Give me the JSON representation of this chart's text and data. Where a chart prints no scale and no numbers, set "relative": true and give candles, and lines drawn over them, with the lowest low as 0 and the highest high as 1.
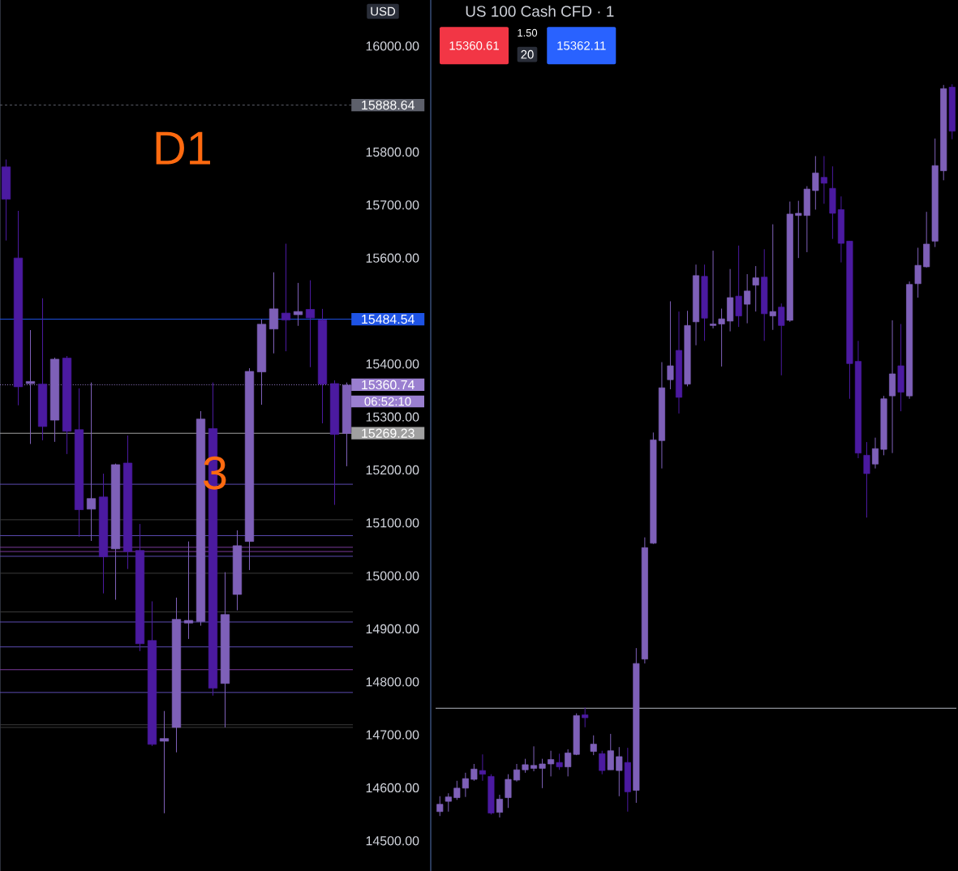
{
  "chart_data": [
    {
      "type": "candlestick",
      "categories": [
        null,
        null,
        null,
        null,
        null,
        null,
        null,
        null,
        null,
        null,
        null,
        null,
        null,
        null,
        null,
        null,
        null,
        null,
        null,
        null,
        null,
        null,
        null,
        null,
        null,
        null,
        null,
        null,
        null
      ],
      "ohlc": [
        [
          15772,
          15786,
          15633,
          15711
        ],
        [
          15600,
          15689,
          15322,
          15357
        ],
        [
          15363,
          15464,
          15249,
          15367
        ],
        [
          15362,
          15524,
          15256,
          15282
        ],
        [
          15294,
          15412,
          15253,
          15409
        ],
        [
          15411,
          15415,
          15230,
          15273
        ],
        [
          15276,
          15354,
          15074,
          15125
        ],
        [
          15126,
          15365,
          15066,
          15146
        ],
        [
          15149,
          15193,
          14967,
          15036
        ],
        [
          15051,
          15212,
          14955,
          15210
        ],
        [
          15213,
          15265,
          15013,
          15046
        ],
        [
          15048,
          15098,
          14858,
          14872
        ],
        [
          14878,
          14952,
          14679,
          14682
        ],
        [
          14688,
          14745,
          14552,
          14693
        ],
        [
          14714,
          14959,
          14667,
          14918
        ],
        [
          14911,
          15065,
          14881,
          14916
        ],
        [
          14914,
          15311,
          14906,
          15296
        ],
        [
          15278,
          15365,
          14774,
          14788
        ],
        [
          14797,
          15007,
          14714,
          14927
        ],
        [
          14965,
          15086,
          14935,
          15057
        ],
        [
          15065,
          15392,
          15011,
          15386
        ],
        [
          15385,
          15484,
          15323,
          15475
        ],
        [
          15466,
          15573,
          15420,
          15504
        ],
        [
          15496,
          15627,
          15424,
          15483
        ],
        [
          15493,
          15553,
          15472,
          15499
        ],
        [
          15503,
          15558,
          15394,
          15487
        ],
        [
          15483,
          15504,
          15288,
          15362
        ],
        [
          15363,
          15369,
          15134,
          15267
        ],
        [
          15269,
          15365,
          15207,
          15360
        ]
      ],
      "colors": [
        "#4b1aa0",
        "#4b1aa0",
        "#7e60b8",
        "#4b1aa0",
        "#7e60b8",
        "#4b1aa0",
        "#4b1aa0",
        "#7e60b8",
        "#4b1aa0",
        "#7e60b8",
        "#4b1aa0",
        "#4b1aa0",
        "#4b1aa0",
        "#7e60b8",
        "#7e60b8",
        "#7e60b8",
        "#7e60b8",
        "#4b1aa0",
        "#7e60b8",
        "#7e60b8",
        "#7e60b8",
        "#7e60b8",
        "#7e60b8",
        "#4b1aa0",
        "#7e60b8",
        "#4b1aa0",
        "#4b1aa0",
        "#4b1aa0",
        "#7e60b8"
      ],
      "ylim": [
        14443,
        16087
      ],
      "yticks": [
        {
          "value": 14500,
          "label": "14500.00"
        },
        {
          "value": 14600,
          "label": "14600.00"
        },
        {
          "value": 14700,
          "label": "14700.00"
        },
        {
          "value": 14800,
          "label": "14800.00"
        },
        {
          "value": 14900,
          "label": "14900.00"
        },
        {
          "value": 15000,
          "label": "15000.00"
        },
        {
          "value": 15100,
          "label": "15100.00"
        },
        {
          "value": 15200,
          "label": "15200.00"
        },
        {
          "value": 15300,
          "label": "15300.00"
        },
        {
          "value": 15400,
          "label": "15400.00"
        },
        {
          "value": 15600,
          "label": "15600.00"
        },
        {
          "value": 15700,
          "label": "15700.00"
        },
        {
          "value": 15800,
          "label": "15800.00"
        },
        {
          "value": 16000,
          "label": "16000.00"
        }
      ],
      "tick_labels": "y",
      "ref_lines": [
        {
          "axis": "y",
          "value": 15173,
          "color": "#5b4bb0"
        },
        {
          "axis": "y",
          "value": 15106,
          "color": "#3a3a3a"
        },
        {
          "axis": "y",
          "value": 15076,
          "color": "#5b4bb0"
        },
        {
          "axis": "y",
          "value": 15054,
          "color": "#7a3a9a"
        },
        {
          "axis": "y",
          "value": 15046,
          "color": "#7a3a9a"
        },
        {
          "axis": "y",
          "value": 15037,
          "color": "#5b4bb0"
        },
        {
          "axis": "y",
          "value": 15005,
          "color": "#3a3a3a"
        },
        {
          "axis": "y",
          "value": 14932,
          "color": "#3a3a3a"
        },
        {
          "axis": "y",
          "value": 14913,
          "color": "#5b4bb0"
        },
        {
          "axis": "y",
          "value": 14866,
          "color": "#5b4bb0"
        },
        {
          "axis": "y",
          "value": 14823,
          "color": "#7a3a9a"
        },
        {
          "axis": "y",
          "value": 14780,
          "color": "#5b4bb0"
        },
        {
          "axis": "y",
          "value": 14719,
          "color": "#3a3a3a"
        },
        {
          "axis": "y",
          "value": 14714,
          "color": "#3a3a3a"
        },
        {
          "axis": "y",
          "value": 15888.64,
          "label": "15888.64",
          "color": "#5d606b",
          "line_style": "dashed"
        },
        {
          "axis": "y",
          "value": 15484.54,
          "label": "15484.54",
          "color": "#1e53e5"
        },
        {
          "axis": "y",
          "value": 15360.74,
          "label": "15360.74",
          "color": "#9a7fd0",
          "line_style": "dotted"
        },
        {
          "axis": "y",
          "value": 15269.23,
          "label": "15269.23",
          "color": "#a0a0a0"
        }
      ],
      "annotations": [
        "D1",
        "3",
        "06:52:10",
        "USD"
      ]
    },
    {
      "type": "candlestick",
      "title": "US 100 Cash CFD · 1",
      "relative": true,
      "categories": [
        null,
        null,
        null,
        null,
        null,
        null,
        null,
        null,
        null,
        null,
        null,
        null,
        null,
        null,
        null,
        null,
        null,
        null,
        null,
        null,
        null,
        null,
        null,
        null,
        null,
        null,
        null,
        null,
        null,
        null,
        null,
        null,
        null,
        null,
        null,
        null,
        null,
        null,
        null,
        null,
        null,
        null,
        null,
        null,
        null,
        null,
        null,
        null,
        null,
        null,
        null,
        null,
        null,
        null,
        null,
        null,
        null,
        null,
        null,
        null,
        null
      ],
      "ohlc": [
        [
          0.008,
          0.029,
          0.002,
          0.018
        ],
        [
          0.022,
          0.033,
          0.008,
          0.028
        ],
        [
          0.027,
          0.05,
          0.024,
          0.04
        ],
        [
          0.04,
          0.061,
          0.028,
          0.053
        ],
        [
          0.052,
          0.073,
          0.05,
          0.066
        ],
        [
          0.064,
          0.086,
          0.05,
          0.059
        ],
        [
          0.056,
          0.059,
          0.004,
          0.006
        ],
        [
          0.007,
          0.031,
          0.0,
          0.025
        ],
        [
          0.027,
          0.059,
          0.013,
          0.052
        ],
        [
          0.051,
          0.073,
          0.049,
          0.065
        ],
        [
          0.065,
          0.08,
          0.061,
          0.072
        ],
        [
          0.067,
          0.097,
          0.063,
          0.071
        ],
        [
          0.067,
          0.08,
          0.04,
          0.073
        ],
        [
          0.073,
          0.091,
          0.056,
          0.079
        ],
        [
          0.075,
          0.087,
          0.065,
          0.069
        ],
        [
          0.069,
          0.093,
          0.056,
          0.088
        ],
        [
          0.086,
          0.142,
          0.085,
          0.139
        ],
        [
          0.14,
          0.15,
          0.123,
          0.136
        ],
        [
          0.09,
          0.112,
          0.085,
          0.1
        ],
        [
          0.087,
          0.091,
          0.059,
          0.064
        ],
        [
          0.065,
          0.114,
          0.065,
          0.091
        ],
        [
          0.064,
          0.096,
          0.029,
          0.083
        ],
        [
          0.075,
          0.095,
          0.008,
          0.035
        ],
        [
          0.037,
          0.231,
          0.02,
          0.21
        ],
        [
          0.216,
          0.382,
          0.21,
          0.368
        ],
        [
          0.374,
          0.525,
          0.373,
          0.515
        ],
        [
          0.514,
          0.621,
          0.476,
          0.586
        ],
        [
          0.597,
          0.704,
          0.584,
          0.616
        ],
        [
          0.637,
          0.69,
          0.551,
          0.573
        ],
        [
          0.591,
          0.691,
          0.588,
          0.671
        ],
        [
          0.676,
          0.754,
          0.644,
          0.739
        ],
        [
          0.738,
          0.754,
          0.65,
          0.681
        ],
        [
          0.671,
          0.773,
          0.667,
          0.673
        ],
        [
          0.673,
          0.694,
          0.615,
          0.68
        ],
        [
          0.677,
          0.748,
          0.663,
          0.709
        ],
        [
          0.711,
          0.78,
          0.669,
          0.684
        ],
        [
          0.7,
          0.741,
          0.674,
          0.718
        ],
        [
          0.726,
          0.752,
          0.69,
          0.736
        ],
        [
          0.737,
          0.775,
          0.65,
          0.687
        ],
        [
          0.684,
          0.809,
          0.665,
          0.69
        ],
        [
          0.696,
          0.701,
          0.603,
          0.671
        ],
        [
          0.678,
          0.84,
          0.676,
          0.823
        ],
        [
          0.821,
          0.841,
          0.763,
          0.824
        ],
        [
          0.821,
          0.861,
          0.771,
          0.857
        ],
        [
          0.855,
          0.902,
          0.829,
          0.879
        ],
        [
          0.873,
          0.902,
          0.837,
          0.865
        ],
        [
          0.858,
          0.888,
          0.789,
          0.824
        ],
        [
          0.829,
          0.847,
          0.757,
          0.783
        ],
        [
          0.786,
          0.786,
          0.571,
          0.619
        ],
        [
          0.622,
          0.65,
          0.49,
          0.497
        ],
        [
          0.494,
          0.512,
          0.409,
          0.469
        ],
        [
          0.482,
          0.518,
          0.476,
          0.503
        ],
        [
          0.502,
          0.575,
          0.494,
          0.571
        ],
        [
          0.575,
          0.678,
          0.497,
          0.605
        ],
        [
          0.616,
          0.673,
          0.554,
          0.58
        ],
        [
          0.575,
          0.731,
          0.571,
          0.727
        ],
        [
          0.728,
          0.777,
          0.709,
          0.753
        ],
        [
          0.751,
          0.826,
          0.75,
          0.782
        ],
        [
          0.786,
          0.926,
          0.778,
          0.889
        ],
        [
          0.882,
          0.999,
          0.869,
          0.994
        ],
        [
          0.996,
          1.0,
          0.925,
          0.936
        ]
      ],
      "colors": [
        "#7e60b8",
        "#7e60b8",
        "#7e60b8",
        "#7e60b8",
        "#7e60b8",
        "#4b1aa0",
        "#4b1aa0",
        "#7e60b8",
        "#7e60b8",
        "#7e60b8",
        "#7e60b8",
        "#7e60b8",
        "#7e60b8",
        "#7e60b8",
        "#4b1aa0",
        "#7e60b8",
        "#7e60b8",
        "#4b1aa0",
        "#7e60b8",
        "#4b1aa0",
        "#7e60b8",
        "#7e60b8",
        "#4b1aa0",
        "#7e60b8",
        "#7e60b8",
        "#7e60b8",
        "#7e60b8",
        "#7e60b8",
        "#4b1aa0",
        "#7e60b8",
        "#7e60b8",
        "#4b1aa0",
        "#7e60b8",
        "#7e60b8",
        "#7e60b8",
        "#4b1aa0",
        "#7e60b8",
        "#7e60b8",
        "#4b1aa0",
        "#7e60b8",
        "#4b1aa0",
        "#7e60b8",
        "#7e60b8",
        "#7e60b8",
        "#7e60b8",
        "#4b1aa0",
        "#4b1aa0",
        "#4b1aa0",
        "#4b1aa0",
        "#4b1aa0",
        "#4b1aa0",
        "#7e60b8",
        "#7e60b8",
        "#7e60b8",
        "#4b1aa0",
        "#7e60b8",
        "#7e60b8",
        "#7e60b8",
        "#7e60b8",
        "#7e60b8",
        "#4b1aa0"
      ],
      "ref_lines": [
        {
          "axis": "y",
          "value": 0.149,
          "color": "#b2b5be"
        }
      ],
      "annotations": [
        "15360.61",
        "1.50",
        "20",
        "15362.11"
      ]
    }
  ]
}
